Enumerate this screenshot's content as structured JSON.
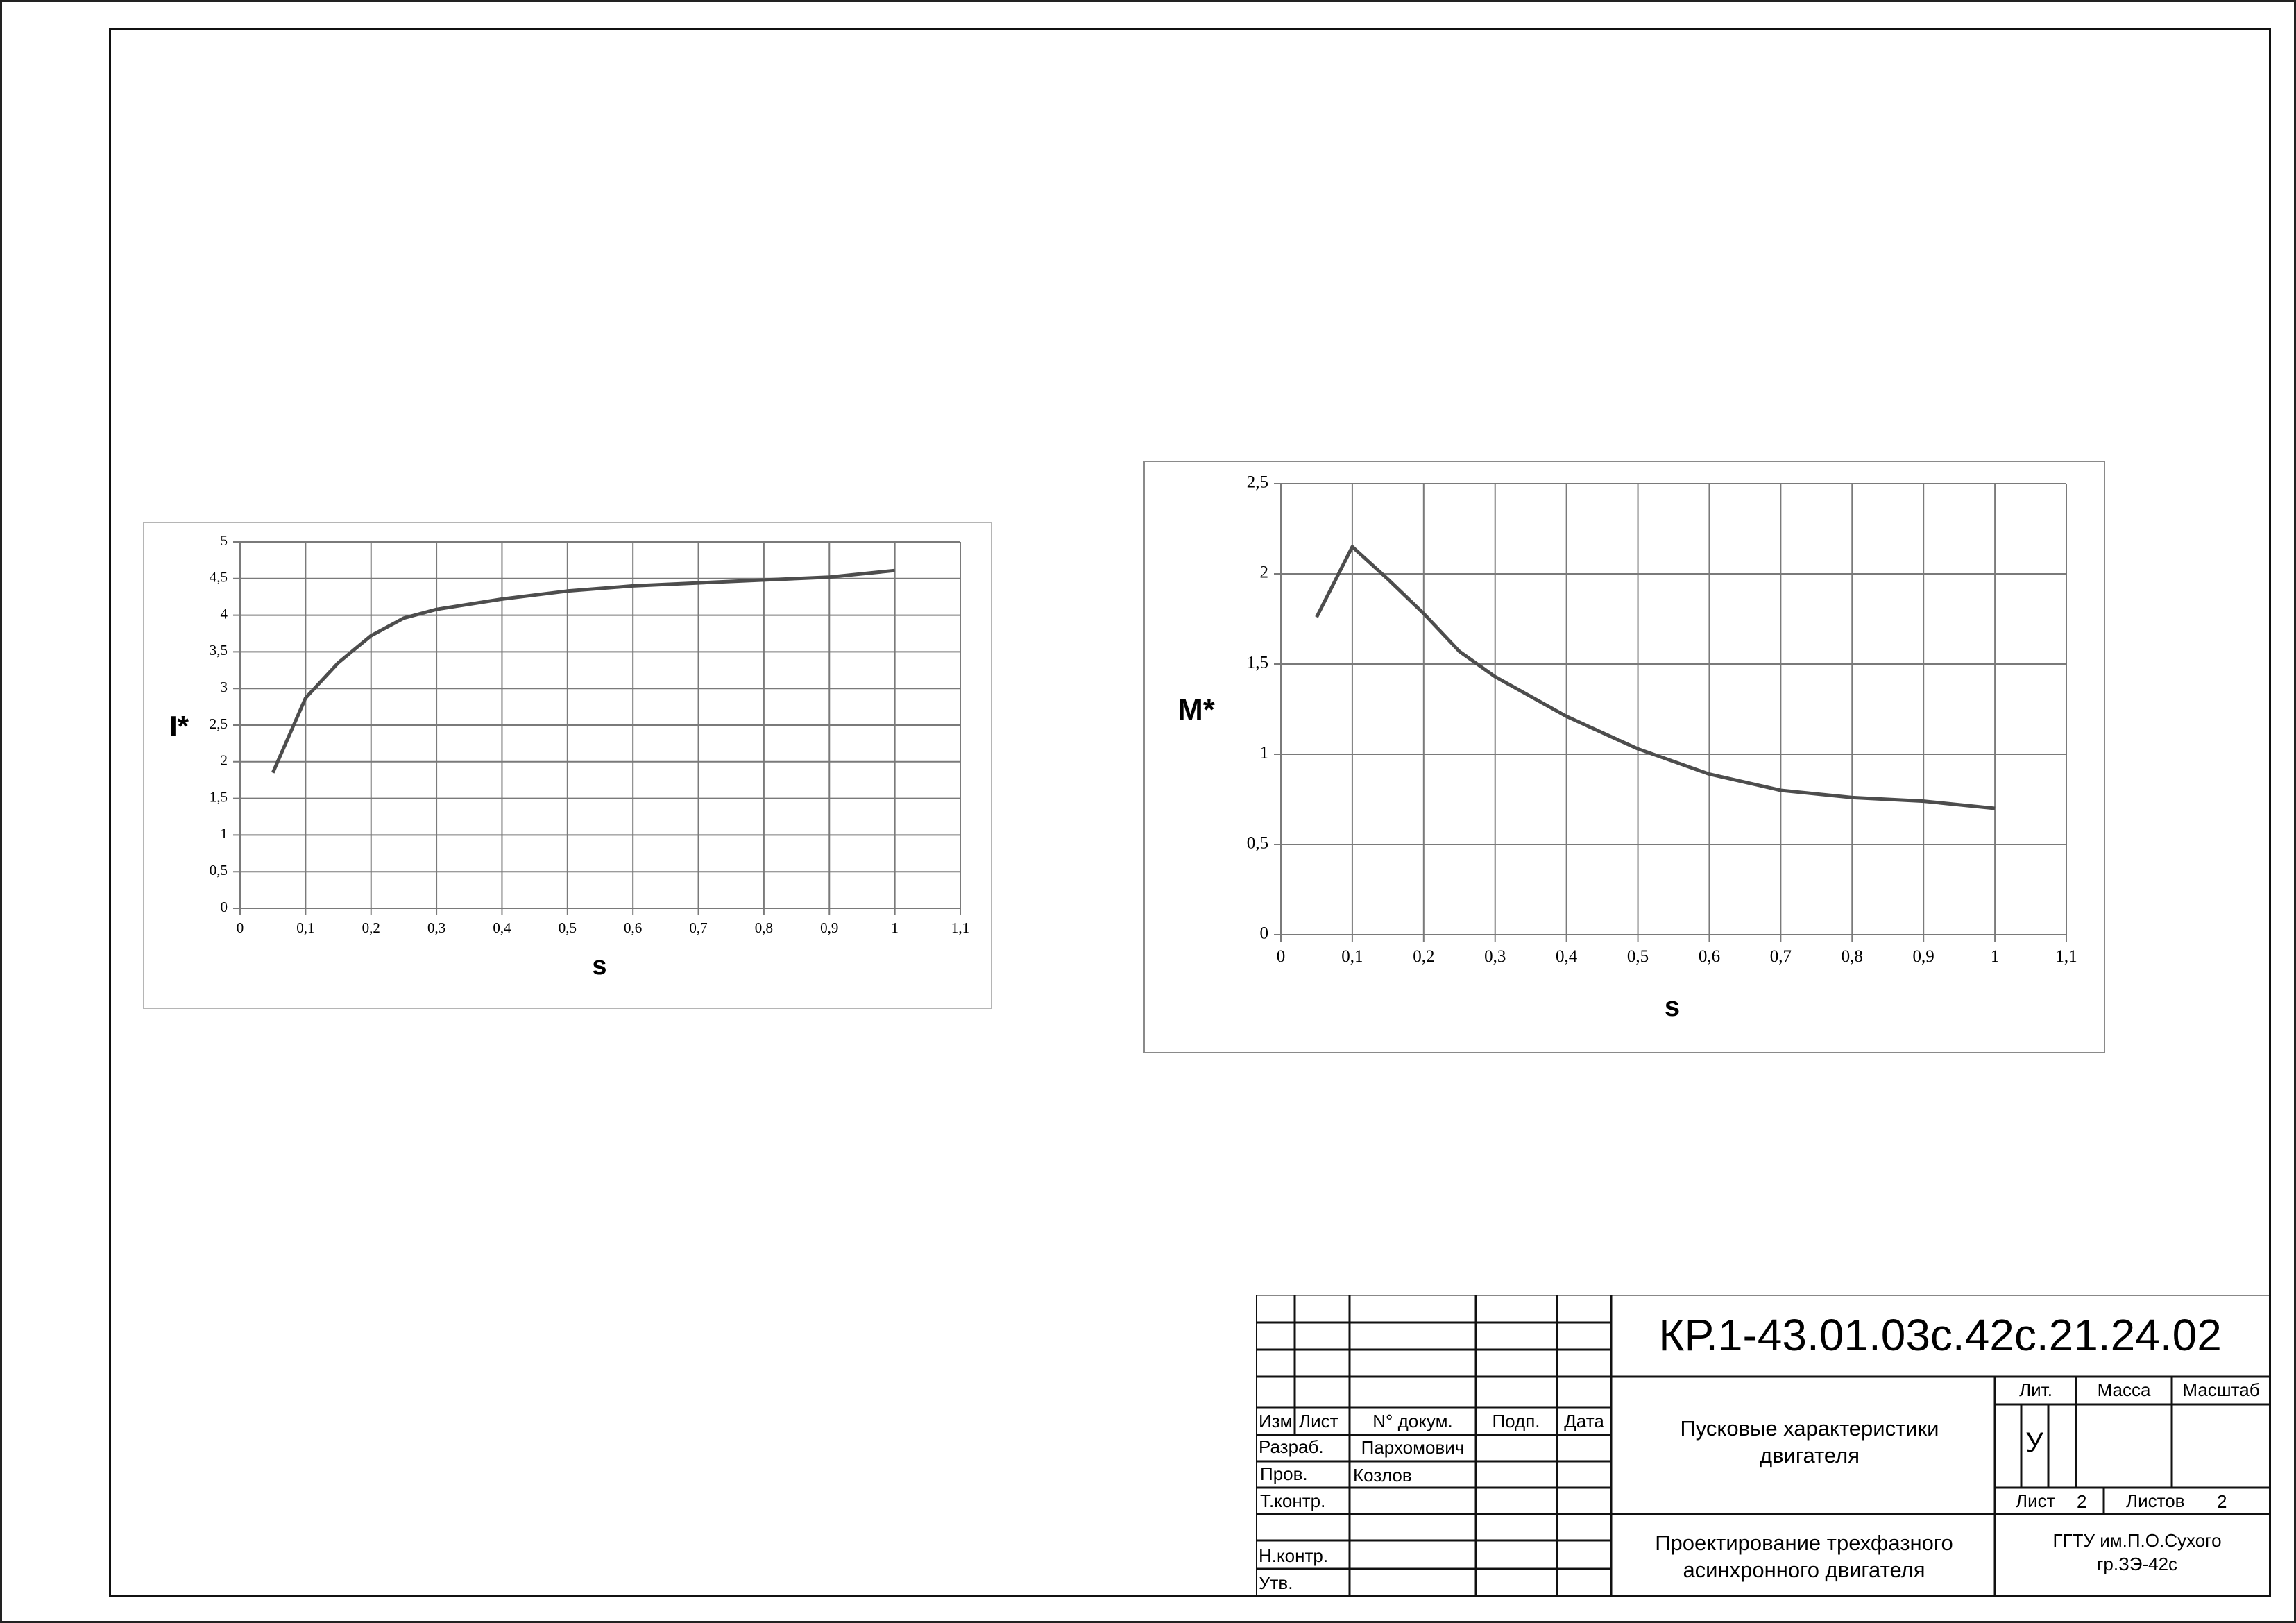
{
  "chart_data": [
    {
      "type": "line",
      "xlabel": "s",
      "ylabel": "I*",
      "xlim": [
        0,
        1.1
      ],
      "ylim": [
        0,
        5
      ],
      "xticks": [
        "0",
        "0,1",
        "0,2",
        "0,3",
        "0,4",
        "0,5",
        "0,6",
        "0,7",
        "0,8",
        "0,9",
        "1",
        "1,1"
      ],
      "yticks": [
        "0",
        "0,5",
        "1",
        "1,5",
        "2",
        "2,5",
        "3",
        "3,5",
        "4",
        "4,5",
        "5"
      ],
      "grid": true,
      "series": [
        {
          "x": [
            0.05,
            0.1,
            0.15,
            0.2,
            0.25,
            0.3,
            0.4,
            0.5,
            0.6,
            0.7,
            0.8,
            0.9,
            1.0
          ],
          "y": [
            1.85,
            2.87,
            3.35,
            3.72,
            3.96,
            4.08,
            4.22,
            4.33,
            4.4,
            4.44,
            4.48,
            4.52,
            4.61
          ]
        }
      ]
    },
    {
      "type": "line",
      "xlabel": "s",
      "ylabel": "M*",
      "xlim": [
        0,
        1.1
      ],
      "ylim": [
        0,
        2.5
      ],
      "xticks": [
        "0",
        "0,1",
        "0,2",
        "0,3",
        "0,4",
        "0,5",
        "0,6",
        "0,7",
        "0,8",
        "0,9",
        "1",
        "1,1"
      ],
      "yticks": [
        "0",
        "0,5",
        "1",
        "1,5",
        "2",
        "2,5"
      ],
      "grid": true,
      "series": [
        {
          "x": [
            0.05,
            0.1,
            0.15,
            0.2,
            0.25,
            0.3,
            0.4,
            0.5,
            0.6,
            0.7,
            0.8,
            0.9,
            1.0
          ],
          "y": [
            1.76,
            2.15,
            1.97,
            1.78,
            1.57,
            1.43,
            1.21,
            1.03,
            0.89,
            0.8,
            0.76,
            0.74,
            0.7
          ]
        }
      ]
    }
  ],
  "title_block": {
    "doc_number": "КР.1-43.01.03с.42с.21.24.02",
    "doc_title_line1": "Пусковые характеристики",
    "doc_title_line2": "двигателя",
    "project_line1": "Проектирование трехфазного",
    "project_line2": "асинхронного двигателя",
    "org_line1": "ГГТУ им.П.О.Сухого",
    "org_line2": "гр.ЗЭ-42с",
    "headers": {
      "izm": "Изм",
      "list": "Лист",
      "doc": "N° докум.",
      "sign": "Подп.",
      "date": "Дата"
    },
    "roles": {
      "developer": "Разраб.",
      "checker": "Пров.",
      "tcontrol": "Т.контр.",
      "ncontrol": "Н.контр.",
      "approved": "Утв."
    },
    "names": {
      "developer": "Пархомович",
      "checker": "Козлов"
    },
    "lit_label": "Лит.",
    "mass_label": "Масса",
    "scale_label": "Масштаб",
    "lit_value": "У",
    "sheet_label": "Лист",
    "sheet_value": "2",
    "sheets_label": "Листов",
    "sheets_value": "2"
  }
}
